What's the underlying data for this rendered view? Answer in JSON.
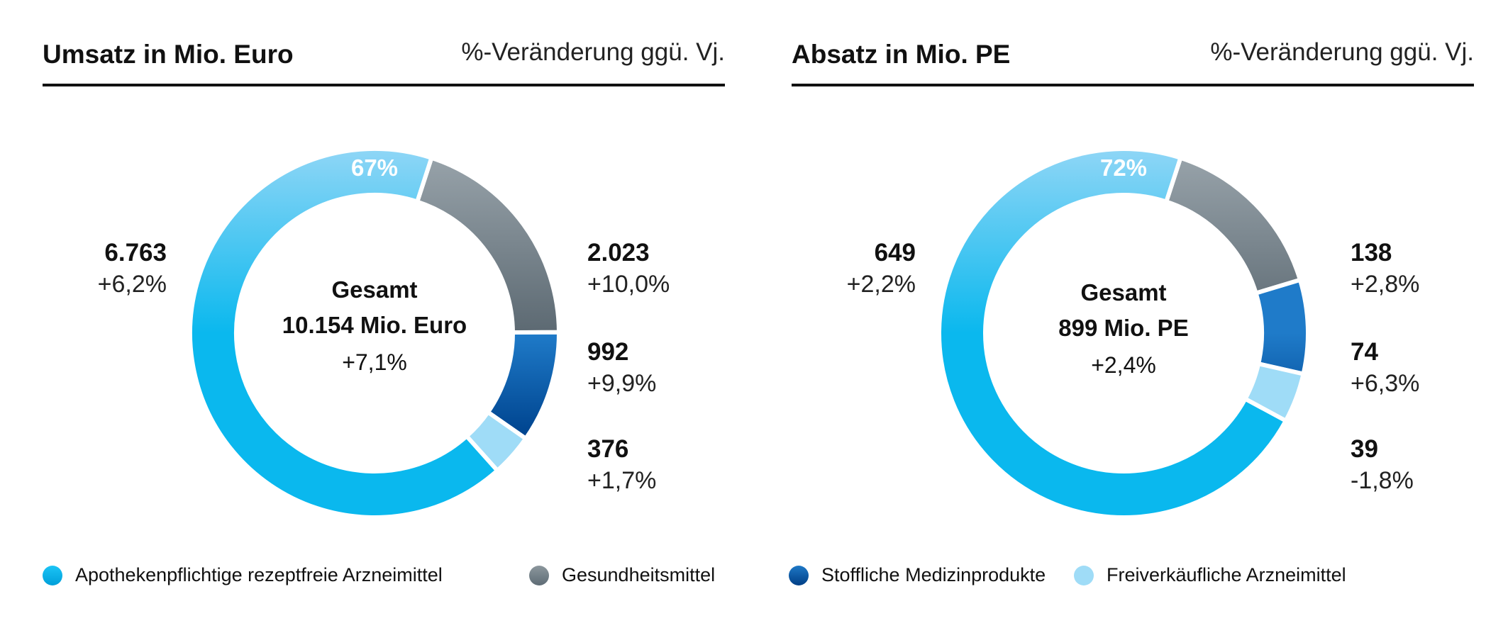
{
  "legend": [
    {
      "label": "Apothekenpflichtige rezeptfreie Arzneimittel",
      "color": "#0ab8ee"
    },
    {
      "label": "Gesundheitsmittel",
      "color": "#6e7c85"
    },
    {
      "label": "Stoffliche Medizinprodukte",
      "color": "#004a94"
    },
    {
      "label": "Freiverkäufliche Arzneimittel",
      "color": "#9fdcf7"
    }
  ],
  "panels": [
    {
      "title": "Umsatz in Mio. Euro",
      "subtitle": "%-Veränderung ggü. Vj.",
      "center_title": "Gesamt",
      "center_total": "10.154 Mio. Euro",
      "center_change": "+7,1%",
      "big_pct": "67%",
      "labels": [
        {
          "value": "6.763",
          "change": "+6,2%"
        },
        {
          "value": "2.023",
          "change": "+10,0%"
        },
        {
          "value": "992",
          "change": "+9,9%"
        },
        {
          "value": "376",
          "change": "+1,7%"
        }
      ]
    },
    {
      "title": "Absatz in Mio. PE",
      "subtitle": "%-Veränderung ggü. Vj.",
      "center_title": "Gesamt",
      "center_total": "899 Mio. PE",
      "center_change": "+2,4%",
      "big_pct": "72%",
      "labels": [
        {
          "value": "649",
          "change": "+2,2%"
        },
        {
          "value": "138",
          "change": "+2,8%"
        },
        {
          "value": "74",
          "change": "+6,3%"
        },
        {
          "value": "39",
          "change": "-1,8%"
        }
      ]
    }
  ],
  "chart_data": [
    {
      "type": "pie",
      "title": "Umsatz in Mio. Euro",
      "subtitle": "%-Veränderung ggü. Vj.",
      "total": 10154,
      "total_change": "+7,1%",
      "legend_position": "bottom",
      "categories": [
        "Apothekenpflichtige rezeptfreie Arzneimittel",
        "Gesundheitsmittel",
        "Stoffliche Medizinprodukte",
        "Freiverkäufliche Arzneimittel"
      ],
      "values": [
        6763,
        2023,
        992,
        376
      ],
      "changes": [
        "+6,2%",
        "+10,0%",
        "+9,9%",
        "+1,7%"
      ],
      "colors": [
        "#0ab8ee",
        "#6e7c85",
        "#004a94",
        "#9fdcf7"
      ]
    },
    {
      "type": "pie",
      "title": "Absatz in Mio. PE",
      "subtitle": "%-Veränderung ggü. Vj.",
      "total": 899,
      "total_change": "+2,4%",
      "legend_position": "bottom",
      "categories": [
        "Apothekenpflichtige rezeptfreie Arzneimittel",
        "Gesundheitsmittel",
        "Stoffliche Medizinprodukte",
        "Freiverkäufliche Arzneimittel"
      ],
      "values": [
        649,
        138,
        74,
        39
      ],
      "changes": [
        "+2,2%",
        "+2,8%",
        "+6,3%",
        "-1,8%"
      ],
      "colors": [
        "#0ab8ee",
        "#6e7c85",
        "#004a94",
        "#9fdcf7"
      ]
    }
  ]
}
